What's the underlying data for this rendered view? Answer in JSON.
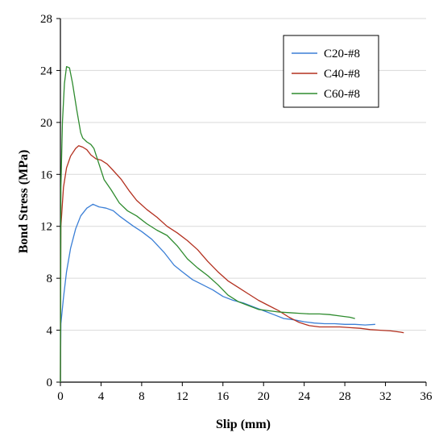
{
  "chart_data": {
    "type": "line",
    "title": "",
    "xlabel": "Slip (mm)",
    "ylabel": "Bond Stress (MPa)",
    "xlim": [
      0,
      36
    ],
    "ylim": [
      0,
      28
    ],
    "xticks": [
      0,
      4,
      8,
      12,
      16,
      20,
      24,
      28,
      32,
      36
    ],
    "yticks": [
      0,
      4,
      8,
      12,
      16,
      20,
      24,
      28
    ],
    "grid": true,
    "legend_position": "top-right",
    "series": [
      {
        "name": "C20-#8",
        "color": "#3b7fd6",
        "points": [
          [
            0,
            0
          ],
          [
            0.05,
            4.5
          ],
          [
            0.3,
            6.5
          ],
          [
            0.6,
            8.5
          ],
          [
            1.0,
            10.3
          ],
          [
            1.5,
            11.8
          ],
          [
            2.0,
            12.8
          ],
          [
            2.6,
            13.4
          ],
          [
            3.2,
            13.7
          ],
          [
            3.8,
            13.5
          ],
          [
            4.5,
            13.4
          ],
          [
            5.2,
            13.2
          ],
          [
            5.8,
            12.8
          ],
          [
            6.5,
            12.4
          ],
          [
            7.2,
            12.0
          ],
          [
            8.0,
            11.6
          ],
          [
            9.0,
            11.0
          ],
          [
            10.2,
            10.0
          ],
          [
            11.2,
            9.0
          ],
          [
            12.0,
            8.5
          ],
          [
            13.0,
            7.9
          ],
          [
            14.0,
            7.5
          ],
          [
            15.0,
            7.1
          ],
          [
            16.0,
            6.6
          ],
          [
            17.0,
            6.3
          ],
          [
            18.0,
            6.1
          ],
          [
            19.0,
            5.8
          ],
          [
            20.0,
            5.5
          ],
          [
            21.0,
            5.2
          ],
          [
            22.0,
            4.9
          ],
          [
            23.0,
            4.8
          ],
          [
            24.0,
            4.65
          ],
          [
            25.0,
            4.55
          ],
          [
            26.0,
            4.5
          ],
          [
            27.0,
            4.5
          ],
          [
            28.0,
            4.45
          ],
          [
            29.0,
            4.45
          ],
          [
            30.0,
            4.4
          ],
          [
            31.0,
            4.45
          ]
        ]
      },
      {
        "name": "C40-#8",
        "color": "#b3301f",
        "points": [
          [
            0,
            0
          ],
          [
            0.05,
            12.0
          ],
          [
            0.3,
            15.0
          ],
          [
            0.6,
            16.5
          ],
          [
            1.0,
            17.4
          ],
          [
            1.5,
            18.0
          ],
          [
            1.8,
            18.2
          ],
          [
            2.2,
            18.1
          ],
          [
            2.6,
            17.9
          ],
          [
            3.0,
            17.5
          ],
          [
            3.5,
            17.2
          ],
          [
            4.0,
            17.1
          ],
          [
            4.6,
            16.8
          ],
          [
            5.2,
            16.3
          ],
          [
            6.0,
            15.6
          ],
          [
            6.8,
            14.7
          ],
          [
            7.5,
            14.0
          ],
          [
            8.5,
            13.3
          ],
          [
            9.5,
            12.7
          ],
          [
            10.5,
            12.0
          ],
          [
            11.5,
            11.5
          ],
          [
            12.5,
            10.9
          ],
          [
            13.5,
            10.2
          ],
          [
            14.5,
            9.3
          ],
          [
            15.5,
            8.5
          ],
          [
            16.5,
            7.8
          ],
          [
            17.5,
            7.3
          ],
          [
            18.5,
            6.8
          ],
          [
            19.5,
            6.3
          ],
          [
            20.5,
            5.9
          ],
          [
            21.5,
            5.5
          ],
          [
            22.5,
            5.0
          ],
          [
            23.5,
            4.6
          ],
          [
            24.5,
            4.35
          ],
          [
            25.5,
            4.25
          ],
          [
            26.5,
            4.25
          ],
          [
            27.5,
            4.25
          ],
          [
            28.5,
            4.2
          ],
          [
            29.5,
            4.15
          ],
          [
            30.5,
            4.05
          ],
          [
            31.5,
            4.0
          ],
          [
            32.5,
            3.95
          ],
          [
            33.5,
            3.85
          ],
          [
            33.8,
            3.8
          ]
        ]
      },
      {
        "name": "C60-#8",
        "color": "#2e8b2e",
        "points": [
          [
            0,
            0
          ],
          [
            0.05,
            15.0
          ],
          [
            0.2,
            20.0
          ],
          [
            0.4,
            23.0
          ],
          [
            0.6,
            24.3
          ],
          [
            0.9,
            24.2
          ],
          [
            1.2,
            23.0
          ],
          [
            1.6,
            21.0
          ],
          [
            2.0,
            19.2
          ],
          [
            2.2,
            18.8
          ],
          [
            2.6,
            18.5
          ],
          [
            3.0,
            18.3
          ],
          [
            3.3,
            18.0
          ],
          [
            3.8,
            16.8
          ],
          [
            4.3,
            15.6
          ],
          [
            5.0,
            14.8
          ],
          [
            5.8,
            13.8
          ],
          [
            6.6,
            13.2
          ],
          [
            7.5,
            12.8
          ],
          [
            8.5,
            12.2
          ],
          [
            9.5,
            11.7
          ],
          [
            10.5,
            11.3
          ],
          [
            11.5,
            10.5
          ],
          [
            12.5,
            9.5
          ],
          [
            13.5,
            8.8
          ],
          [
            14.5,
            8.2
          ],
          [
            15.5,
            7.5
          ],
          [
            16.5,
            6.7
          ],
          [
            17.5,
            6.2
          ],
          [
            18.5,
            5.9
          ],
          [
            19.5,
            5.6
          ],
          [
            20.5,
            5.5
          ],
          [
            21.5,
            5.4
          ],
          [
            22.5,
            5.35
          ],
          [
            23.5,
            5.3
          ],
          [
            24.5,
            5.25
          ],
          [
            25.5,
            5.25
          ],
          [
            26.5,
            5.2
          ],
          [
            27.5,
            5.1
          ],
          [
            28.5,
            5.0
          ],
          [
            29.0,
            4.9
          ]
        ]
      }
    ]
  }
}
